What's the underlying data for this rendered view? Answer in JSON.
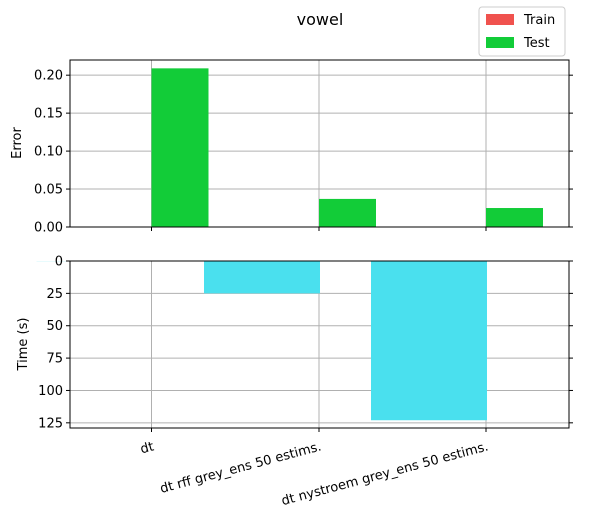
{
  "chart_data": [
    {
      "type": "bar",
      "title": "vowel",
      "xlabel": "",
      "ylabel": "Error",
      "categories": [
        "dt",
        "dt rff grey_ens 50 estims.",
        "dt nystroem grey_ens 50 estims."
      ],
      "series": [
        {
          "name": "Train",
          "color": "#f0524e",
          "values": [
            0,
            0,
            0
          ]
        },
        {
          "name": "Test",
          "color": "#12cc38",
          "values": [
            0.209,
            0.037,
            0.025
          ]
        }
      ],
      "yticks": [
        "0.00",
        "0.05",
        "0.10",
        "0.15",
        "0.20"
      ],
      "ylim": [
        0,
        0.22
      ],
      "grid": true,
      "legend": "top-right"
    },
    {
      "type": "bar",
      "title": "",
      "xlabel": "",
      "ylabel": "Time (s)",
      "categories": [
        "dt",
        "dt rff grey_ens 50 estims.",
        "dt nystroem grey_ens 50 estims."
      ],
      "series": [
        {
          "name": "",
          "color": "#4ae0ee",
          "values": [
            0.1,
            25,
            123
          ]
        }
      ],
      "yticks": [
        "0",
        "25",
        "50",
        "75",
        "100",
        "125"
      ],
      "ylim": [
        0,
        129
      ],
      "y_inverted": true,
      "grid": true
    }
  ]
}
